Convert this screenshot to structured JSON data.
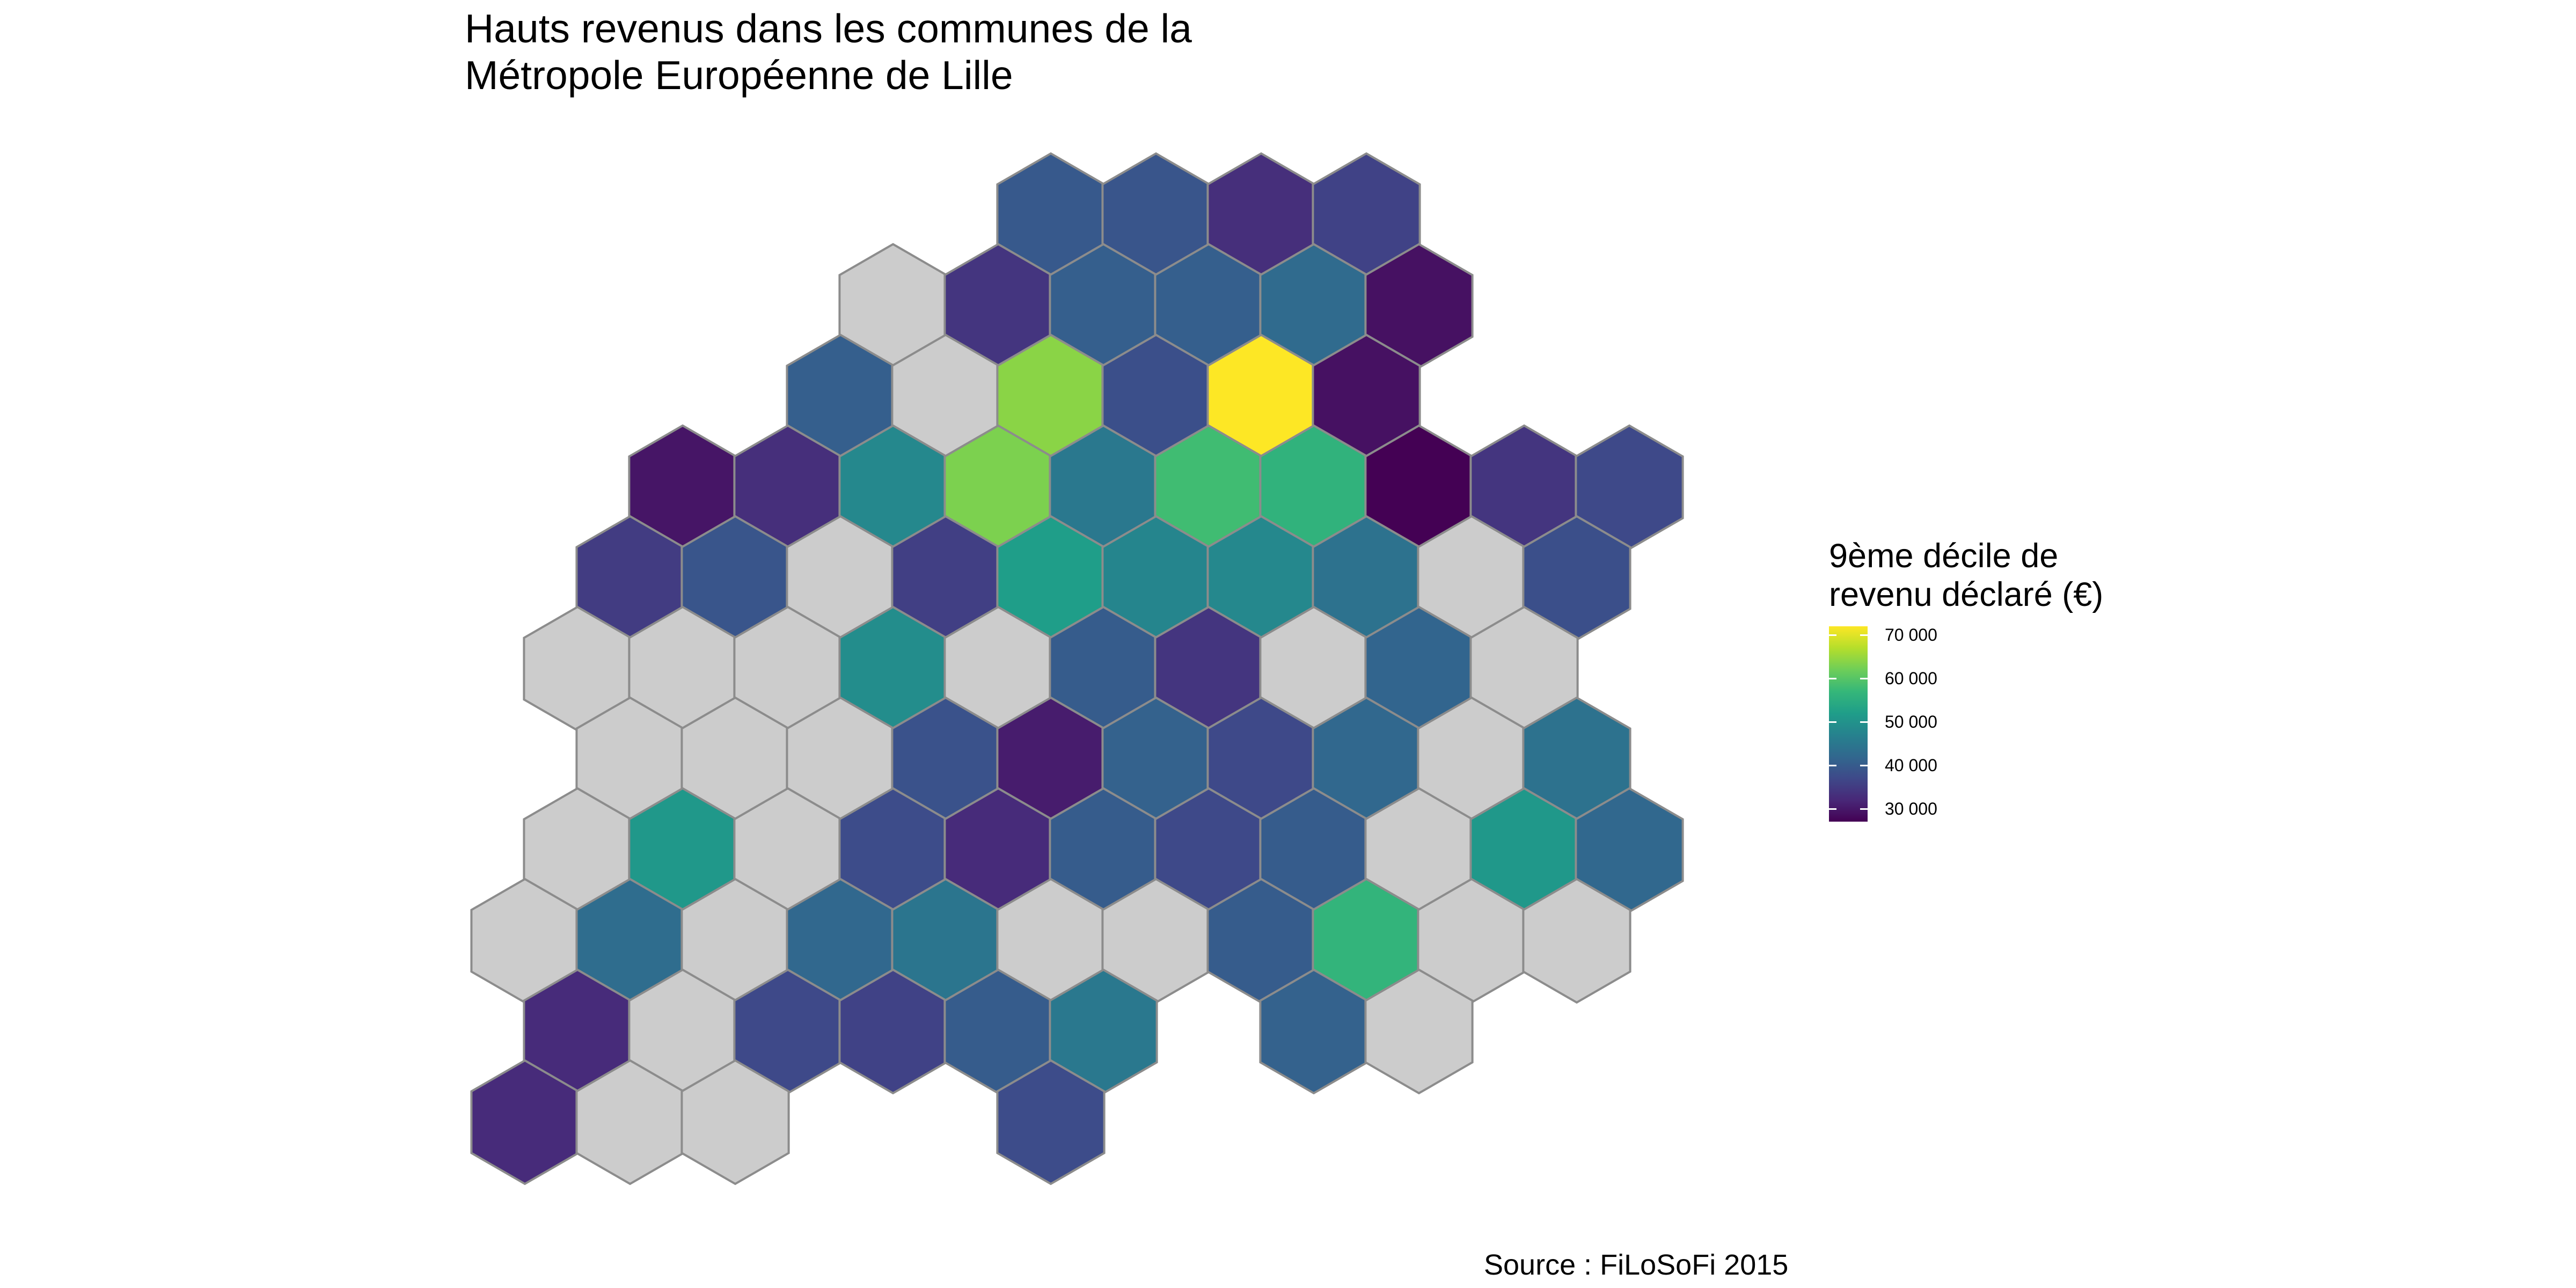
{
  "title": {
    "line1": "Hauts revenus dans les communes de la",
    "line2": "Métropole Européenne de Lille"
  },
  "legend": {
    "title_line1": "9ème décile de",
    "title_line2": "revenu déclaré (€)",
    "labels": [
      "70 000",
      "60 000",
      "50 000",
      "40 000",
      "30 000"
    ],
    "ticks": [
      70000,
      60000,
      50000,
      40000,
      30000
    ],
    "range": [
      27000,
      72000
    ],
    "colormap": "viridis"
  },
  "caption": "Source : FiLoSoFi 2015",
  "colors": {
    "missing": "#cccccc",
    "border": "#8c8c8c",
    "background": "#ffffff"
  },
  "map_data": {
    "type": "hexbin",
    "rows": [
      {
        "row": 0,
        "offset": 0,
        "cells": [
          [
            9,
            39500
          ],
          [
            11,
            39000
          ],
          [
            13,
            33000
          ],
          [
            15,
            36000
          ]
        ]
      },
      {
        "row": 1,
        "offset": 1,
        "cells": [
          [
            6,
            null
          ],
          [
            8,
            34000
          ],
          [
            10,
            40500
          ],
          [
            12,
            40500
          ],
          [
            14,
            42500
          ],
          [
            16,
            29000
          ]
        ]
      },
      {
        "row": 2,
        "offset": 0,
        "cells": [
          [
            5,
            40500
          ],
          [
            7,
            null
          ],
          [
            9,
            64000
          ],
          [
            11,
            38000
          ],
          [
            13,
            72000
          ],
          [
            15,
            29000
          ]
        ]
      },
      {
        "row": 3,
        "offset": 1,
        "cells": [
          [
            2,
            29500
          ],
          [
            4,
            33000
          ],
          [
            6,
            48000
          ],
          [
            8,
            63000
          ],
          [
            10,
            45000
          ],
          [
            12,
            58000
          ],
          [
            14,
            56000
          ],
          [
            16,
            27000
          ],
          [
            18,
            34000
          ],
          [
            20,
            37000
          ]
        ]
      },
      {
        "row": 4,
        "offset": 0,
        "cells": [
          [
            1,
            35000
          ],
          [
            3,
            39000
          ],
          [
            5,
            null
          ],
          [
            7,
            35500
          ],
          [
            9,
            52000
          ],
          [
            11,
            47500
          ],
          [
            13,
            48000
          ],
          [
            15,
            44000
          ],
          [
            17,
            null
          ],
          [
            19,
            38000
          ]
        ]
      },
      {
        "row": 5,
        "offset": 1,
        "cells": [
          [
            0,
            null
          ],
          [
            2,
            null
          ],
          [
            4,
            null
          ],
          [
            6,
            49000
          ],
          [
            8,
            null
          ],
          [
            10,
            40000
          ],
          [
            12,
            34000
          ],
          [
            14,
            null
          ],
          [
            16,
            41500
          ],
          [
            18,
            null
          ]
        ]
      },
      {
        "row": 6,
        "offset": 0,
        "cells": [
          [
            1,
            null
          ],
          [
            3,
            null
          ],
          [
            5,
            null
          ],
          [
            7,
            38500
          ],
          [
            9,
            30500
          ],
          [
            11,
            41000
          ],
          [
            13,
            37000
          ],
          [
            15,
            42000
          ],
          [
            17,
            null
          ],
          [
            19,
            44000
          ]
        ]
      },
      {
        "row": 7,
        "offset": 1,
        "cells": [
          [
            0,
            null
          ],
          [
            2,
            51000
          ],
          [
            4,
            null
          ],
          [
            6,
            37500
          ],
          [
            8,
            32500
          ],
          [
            10,
            40000
          ],
          [
            12,
            37000
          ],
          [
            14,
            40000
          ],
          [
            16,
            null
          ],
          [
            18,
            51000
          ],
          [
            20,
            42000
          ]
        ]
      },
      {
        "row": 8,
        "offset": 0,
        "cells": [
          [
            -1,
            null
          ],
          [
            1,
            43000
          ],
          [
            3,
            null
          ],
          [
            5,
            42000
          ],
          [
            7,
            44500
          ],
          [
            9,
            null
          ],
          [
            11,
            null
          ],
          [
            13,
            40000
          ],
          [
            15,
            56500
          ],
          [
            17,
            null
          ],
          [
            19,
            null
          ]
        ]
      },
      {
        "row": 9,
        "offset": 1,
        "cells": [
          [
            0,
            32500
          ],
          [
            2,
            null
          ],
          [
            4,
            37000
          ],
          [
            6,
            36000
          ],
          [
            8,
            40000
          ],
          [
            10,
            45000
          ],
          [
            14,
            41000
          ],
          [
            16,
            null
          ]
        ]
      },
      {
        "row": 10,
        "offset": 0,
        "cells": [
          [
            -1,
            32500
          ],
          [
            1,
            null
          ],
          [
            3,
            null
          ],
          [
            9,
            37500
          ]
        ]
      }
    ]
  }
}
